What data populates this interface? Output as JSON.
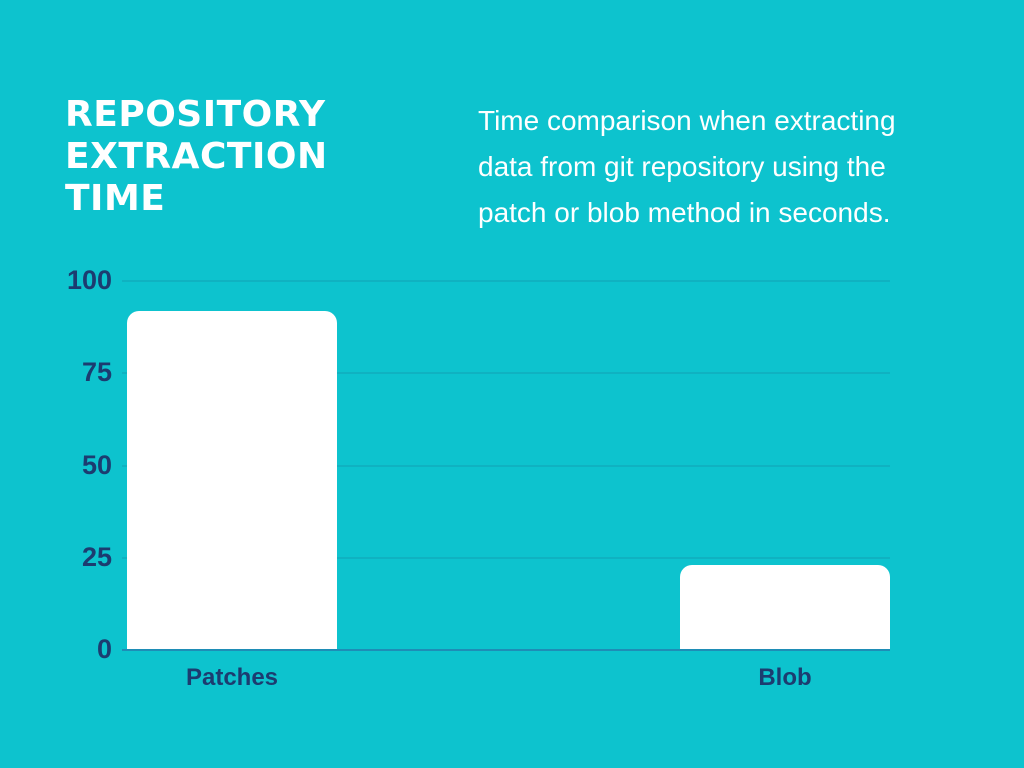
{
  "page": {
    "background_color": "#0dc3ce",
    "text_color": "#ffffff",
    "title": "REPOSITORY EXTRACTION TIME",
    "description": "Time comparison when extracting data from git repository using the patch or blob method in seconds."
  },
  "chart_data": {
    "type": "bar",
    "title": "REPOSITORY EXTRACTION TIME",
    "subtitle": "Time comparison when extracting data from git repository using the patch or blob method in seconds.",
    "categories": [
      "Patches",
      "Blob"
    ],
    "values": [
      92,
      23
    ],
    "xlabel": "",
    "ylabel": "",
    "ylim": [
      0,
      100
    ],
    "yticks": [
      0,
      25,
      50,
      75,
      100
    ],
    "grid": true,
    "legend": false,
    "bar_color": "#ffffff",
    "tick_label_color": "#1c3c70",
    "gridline_color": "#0fb2c1",
    "baseline_color": "#1e8db6"
  }
}
